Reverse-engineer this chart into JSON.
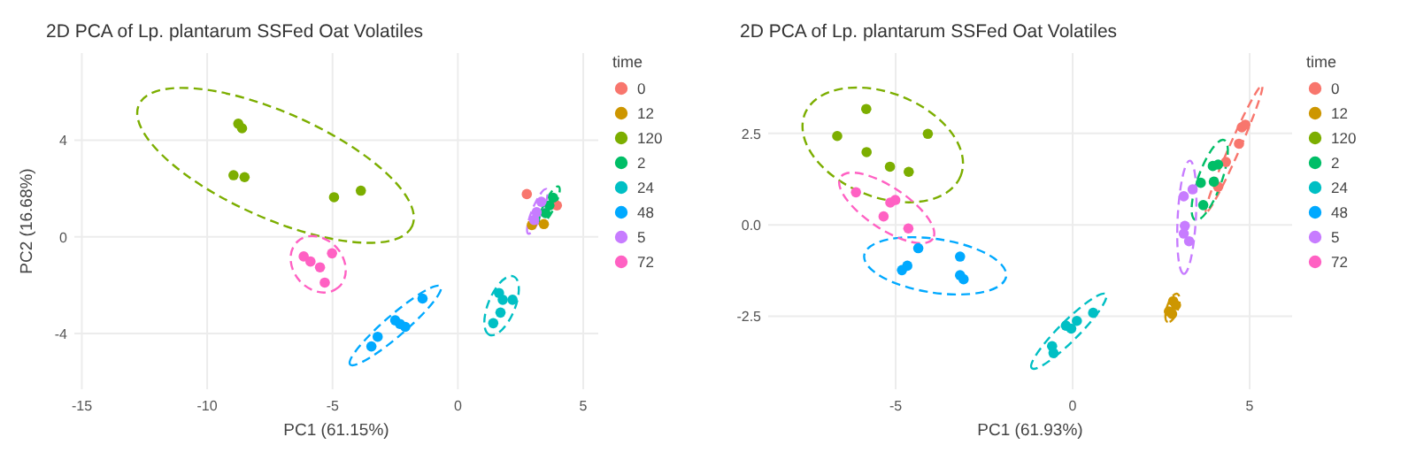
{
  "chart_data": [
    {
      "type": "scatter",
      "title": "2D PCA of Lp. plantarum SSFed Oat Volatiles",
      "xlabel": "PC1 (61.15%)",
      "ylabel": "PC2 (16.68%)",
      "legend_title": "time",
      "legend": "right",
      "grid": true,
      "marker": "circle",
      "xlim": [
        -15.3,
        5.6
      ],
      "ylim": [
        -6.3,
        7.6
      ],
      "xticks": [
        -15,
        -10,
        -5,
        0,
        5
      ],
      "yticks": [
        -4,
        0,
        4
      ],
      "series": [
        {
          "name": "0",
          "color": "#F8766D",
          "x": [
            2.75,
            3.95
          ],
          "values": [
            1.77,
            1.3
          ]
        },
        {
          "name": "12",
          "color": "#CD9600",
          "x": [
            2.95,
            3.43
          ],
          "values": [
            0.49,
            0.53
          ]
        },
        {
          "name": "120",
          "color": "#7CAE00",
          "x": [
            -8.76,
            -8.61,
            -8.95,
            -8.51,
            -4.94,
            -3.87
          ],
          "values": [
            4.68,
            4.49,
            2.55,
            2.47,
            1.64,
            1.91
          ]
        },
        {
          "name": "2",
          "color": "#00BE67",
          "x": [
            3.5,
            3.65,
            3.8
          ],
          "values": [
            0.98,
            1.3,
            1.62
          ]
        },
        {
          "name": "24",
          "color": "#00BFC4",
          "x": [
            1.64,
            1.79,
            2.18,
            1.7,
            1.41
          ],
          "values": [
            -2.32,
            -2.6,
            -2.6,
            -3.13,
            -3.57
          ]
        },
        {
          "name": "48",
          "color": "#00A9FF",
          "x": [
            -1.41,
            -2.5,
            -2.31,
            -2.1,
            -3.2,
            -3.45
          ],
          "values": [
            -2.55,
            -3.45,
            -3.6,
            -3.72,
            -4.13,
            -4.53
          ]
        },
        {
          "name": "5",
          "color": "#C77CFF",
          "x": [
            3.33,
            3.14,
            3.04
          ],
          "values": [
            1.45,
            1.02,
            0.7
          ]
        },
        {
          "name": "72",
          "color": "#FF61C3",
          "x": [
            -6.15,
            -5.88,
            -5.5,
            -5.02,
            -5.31
          ],
          "values": [
            -0.81,
            -1.02,
            -1.26,
            -0.68,
            -1.89
          ]
        }
      ]
    },
    {
      "type": "scatter",
      "title": "2D PCA of Lp. plantarum SSFed Oat Volatiles",
      "xlabel": "PC1 (61.93%)",
      "legend_title": "time",
      "legend": "right",
      "grid": true,
      "marker": "circle",
      "xlim": [
        -8.6,
        6.2
      ],
      "ylim": [
        -4.5,
        4.7
      ],
      "xticks": [
        -5,
        0,
        5
      ],
      "yticks": [
        {
          "value": -2.5,
          "label": "-2.5"
        },
        {
          "value": 0,
          "label": "0.0"
        },
        {
          "value": 2.5,
          "label": "2.5"
        }
      ],
      "series": [
        {
          "name": "0",
          "color": "#F8766D",
          "x": [
            4.33,
            4.11,
            4.7,
            4.78,
            4.88
          ],
          "values": [
            1.72,
            1.04,
            2.22,
            2.67,
            2.74
          ]
        },
        {
          "name": "12",
          "color": "#CD9600",
          "x": [
            2.84,
            2.92,
            2.81,
            2.72
          ],
          "values": [
            -2.09,
            -2.2,
            -2.44,
            -2.37
          ]
        },
        {
          "name": "120",
          "color": "#7CAE00",
          "x": [
            -5.83,
            -6.65,
            -5.82,
            -4.09,
            -5.16,
            -4.63
          ],
          "values": [
            3.17,
            2.43,
            1.99,
            2.49,
            1.59,
            1.45
          ]
        },
        {
          "name": "2",
          "color": "#00BE67",
          "x": [
            3.69,
            3.62,
            3.99,
            3.96,
            4.11
          ],
          "values": [
            0.54,
            1.15,
            1.18,
            1.61,
            1.65
          ]
        },
        {
          "name": "24",
          "color": "#00BFC4",
          "x": [
            0.58,
            0.12,
            -0.19,
            -0.04,
            -0.58,
            -0.54
          ],
          "values": [
            -2.41,
            -2.63,
            -2.76,
            -2.84,
            -3.32,
            -3.51
          ]
        },
        {
          "name": "48",
          "color": "#00A9FF",
          "x": [
            -4.36,
            -3.18,
            -4.67,
            -4.82,
            -3.18,
            -3.08
          ],
          "values": [
            -0.64,
            -0.87,
            -1.12,
            -1.24,
            -1.38,
            -1.49
          ]
        },
        {
          "name": "5",
          "color": "#C77CFF",
          "x": [
            3.14,
            3.39,
            3.17,
            3.14,
            3.29
          ],
          "values": [
            0.78,
            0.97,
            -0.03,
            -0.24,
            -0.45
          ]
        },
        {
          "name": "72",
          "color": "#FF61C3",
          "x": [
            -6.12,
            -5.15,
            -5.01,
            -5.34,
            -4.64
          ],
          "values": [
            0.89,
            0.61,
            0.68,
            0.23,
            -0.1
          ]
        }
      ]
    }
  ]
}
